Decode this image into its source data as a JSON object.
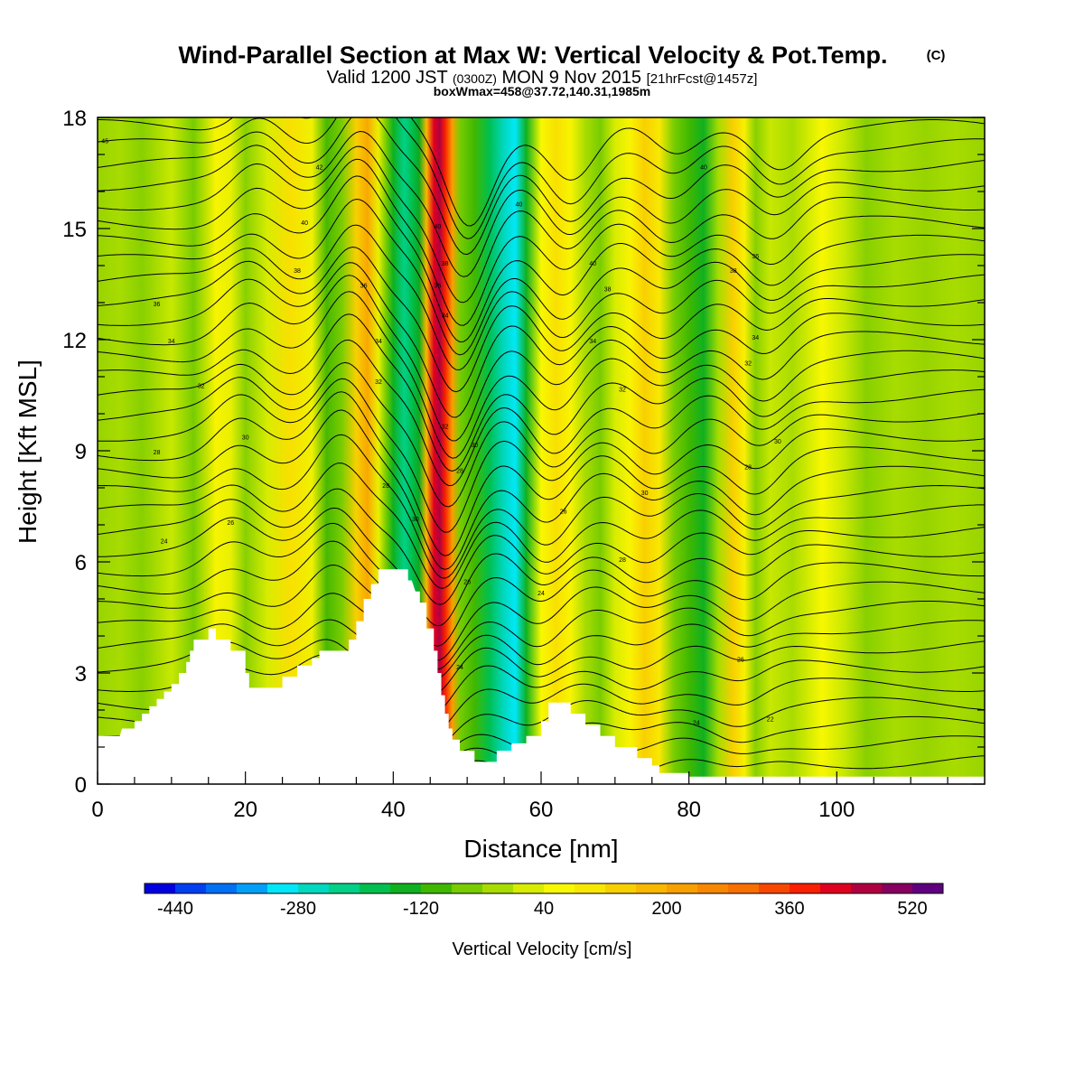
{
  "title": "Wind-Parallel Section at Max W: Vertical Velocity & Pot.Temp.",
  "copyright_mark": "(C)",
  "subtitle_valid": "Valid 1200 JST",
  "subtitle_z": "(0300Z)",
  "subtitle_date": "MON 9 Nov 2015",
  "subtitle_fcst": "[21hrFcst@1457z]",
  "subtitle_box": "boxWmax=458@37.72,140.31,1985m",
  "chart_data": {
    "type": "heatmap",
    "xlabel": "Distance [nm]",
    "ylabel": "Height [Kft MSL]",
    "xlim": [
      0,
      120
    ],
    "ylim": [
      0,
      18
    ],
    "x_ticks": [
      "0",
      "20",
      "40",
      "60",
      "80",
      "100"
    ],
    "y_ticks": [
      "0",
      "3",
      "6",
      "9",
      "12",
      "15",
      "18"
    ],
    "colorbar": {
      "label": "Vertical Velocity [cm/s]",
      "tick_labels": [
        "-440",
        "-280",
        "-120",
        "40",
        "200",
        "360",
        "520"
      ],
      "levels": [
        -480,
        -440,
        -400,
        -360,
        -320,
        -280,
        -240,
        -200,
        -160,
        -120,
        -80,
        -40,
        0,
        40,
        80,
        120,
        160,
        200,
        240,
        280,
        320,
        360,
        400,
        440,
        480,
        520,
        560
      ],
      "colors": [
        "#0000e0",
        "#0040f0",
        "#0070f4",
        "#00a0f8",
        "#00e8f8",
        "#00d8c0",
        "#00d088",
        "#00c050",
        "#10b020",
        "#40b800",
        "#78cc00",
        "#a8dc00",
        "#d8ec00",
        "#f8f800",
        "#f8e800",
        "#f8d000",
        "#f8b800",
        "#f8a000",
        "#f88800",
        "#f87000",
        "#f84800",
        "#f82000",
        "#e00020",
        "#b00040",
        "#880060",
        "#600080"
      ]
    },
    "terrain_profile": [
      [
        0,
        1.3
      ],
      [
        3,
        1.3
      ],
      [
        3.3,
        1.5
      ],
      [
        5,
        1.5
      ],
      [
        5,
        1.7
      ],
      [
        6,
        1.7
      ],
      [
        6,
        1.9
      ],
      [
        7,
        1.9
      ],
      [
        7,
        2.1
      ],
      [
        8,
        2.1
      ],
      [
        8,
        2.3
      ],
      [
        9,
        2.3
      ],
      [
        9,
        2.5
      ],
      [
        10,
        2.5
      ],
      [
        10,
        2.7
      ],
      [
        11,
        2.7
      ],
      [
        11,
        3.0
      ],
      [
        12,
        3.0
      ],
      [
        12,
        3.3
      ],
      [
        12.5,
        3.3
      ],
      [
        12.5,
        3.6
      ],
      [
        13,
        3.6
      ],
      [
        13,
        3.9
      ],
      [
        15,
        3.9
      ],
      [
        15,
        4.2
      ],
      [
        16,
        4.2
      ],
      [
        16,
        3.9
      ],
      [
        18,
        3.9
      ],
      [
        18,
        3.6
      ],
      [
        20,
        3.6
      ],
      [
        20,
        3.0
      ],
      [
        20.5,
        3.0
      ],
      [
        20.5,
        2.6
      ],
      [
        25,
        2.6
      ],
      [
        25,
        2.9
      ],
      [
        27,
        2.9
      ],
      [
        27,
        3.2
      ],
      [
        29,
        3.2
      ],
      [
        29,
        3.4
      ],
      [
        30,
        3.4
      ],
      [
        30,
        3.6
      ],
      [
        34,
        3.6
      ],
      [
        34,
        3.9
      ],
      [
        35,
        3.9
      ],
      [
        35,
        4.4
      ],
      [
        36,
        4.4
      ],
      [
        36,
        5.0
      ],
      [
        37,
        5.0
      ],
      [
        37,
        5.4
      ],
      [
        38,
        5.4
      ],
      [
        38,
        5.8
      ],
      [
        42,
        5.8
      ],
      [
        42,
        5.5
      ],
      [
        42.5,
        5.5
      ],
      [
        43,
        5.2
      ],
      [
        43.6,
        5.2
      ],
      [
        43.6,
        4.9
      ],
      [
        44.5,
        4.9
      ],
      [
        44.5,
        4.2
      ],
      [
        45.5,
        4.2
      ],
      [
        45.5,
        3.6
      ],
      [
        46,
        3.6
      ],
      [
        46,
        3.0
      ],
      [
        46.5,
        3.0
      ],
      [
        46.5,
        2.4
      ],
      [
        47,
        2.4
      ],
      [
        47,
        1.9
      ],
      [
        47.5,
        1.9
      ],
      [
        47.5,
        1.5
      ],
      [
        48,
        1.5
      ],
      [
        48,
        1.2
      ],
      [
        49,
        1.2
      ],
      [
        49,
        0.9
      ],
      [
        51,
        0.9
      ],
      [
        51,
        0.6
      ],
      [
        54,
        0.6
      ],
      [
        54,
        0.9
      ],
      [
        56,
        0.9
      ],
      [
        56,
        1.1
      ],
      [
        58,
        1.1
      ],
      [
        58,
        1.3
      ],
      [
        60,
        1.3
      ],
      [
        60,
        1.7
      ],
      [
        61,
        1.7
      ],
      [
        61,
        2.2
      ],
      [
        64,
        2.2
      ],
      [
        64,
        1.9
      ],
      [
        66,
        1.9
      ],
      [
        66,
        1.6
      ],
      [
        68,
        1.6
      ],
      [
        68,
        1.3
      ],
      [
        70,
        1.3
      ],
      [
        70,
        1.0
      ],
      [
        73,
        1.0
      ],
      [
        73,
        0.7
      ],
      [
        75,
        0.7
      ],
      [
        75,
        0.5
      ],
      [
        76,
        0.5
      ],
      [
        76,
        0.3
      ],
      [
        80,
        0.3
      ],
      [
        80,
        0.2
      ],
      [
        120,
        0.2
      ]
    ],
    "contour_labels": [
      {
        "text": "45",
        "x": 1,
        "y": 17.3
      },
      {
        "text": "42",
        "x": 30,
        "y": 16.6
      },
      {
        "text": "40",
        "x": 28,
        "y": 15.1
      },
      {
        "text": "38",
        "x": 27,
        "y": 13.8
      },
      {
        "text": "36",
        "x": 36,
        "y": 13.4
      },
      {
        "text": "36",
        "x": 8,
        "y": 12.9
      },
      {
        "text": "34",
        "x": 10,
        "y": 11.9
      },
      {
        "text": "32",
        "x": 14,
        "y": 10.7
      },
      {
        "text": "34",
        "x": 38,
        "y": 11.9
      },
      {
        "text": "32",
        "x": 38,
        "y": 10.8
      },
      {
        "text": "30",
        "x": 20,
        "y": 9.3
      },
      {
        "text": "28",
        "x": 8,
        "y": 8.9
      },
      {
        "text": "26",
        "x": 18,
        "y": 7.0
      },
      {
        "text": "24",
        "x": 9,
        "y": 6.5
      },
      {
        "text": "28",
        "x": 39,
        "y": 8.0
      },
      {
        "text": "30",
        "x": 43,
        "y": 7.1
      },
      {
        "text": "40",
        "x": 46,
        "y": 15.0
      },
      {
        "text": "38",
        "x": 47,
        "y": 14.0
      },
      {
        "text": "36",
        "x": 46,
        "y": 13.4
      },
      {
        "text": "34",
        "x": 47,
        "y": 12.6
      },
      {
        "text": "32",
        "x": 47,
        "y": 9.6
      },
      {
        "text": "30",
        "x": 51,
        "y": 9.1
      },
      {
        "text": "28",
        "x": 49,
        "y": 8.4
      },
      {
        "text": "26",
        "x": 50,
        "y": 5.4
      },
      {
        "text": "24",
        "x": 49,
        "y": 3.1
      },
      {
        "text": "40",
        "x": 57,
        "y": 15.6
      },
      {
        "text": "26",
        "x": 63,
        "y": 7.3
      },
      {
        "text": "24",
        "x": 60,
        "y": 5.1
      },
      {
        "text": "40",
        "x": 67,
        "y": 14.0
      },
      {
        "text": "38",
        "x": 69,
        "y": 13.3
      },
      {
        "text": "34",
        "x": 67,
        "y": 11.9
      },
      {
        "text": "32",
        "x": 71,
        "y": 10.6
      },
      {
        "text": "30",
        "x": 74,
        "y": 7.8
      },
      {
        "text": "28",
        "x": 71,
        "y": 6.0
      },
      {
        "text": "40",
        "x": 82,
        "y": 16.6
      },
      {
        "text": "38",
        "x": 86,
        "y": 13.8
      },
      {
        "text": "36",
        "x": 89,
        "y": 14.2
      },
      {
        "text": "34",
        "x": 89,
        "y": 12.0
      },
      {
        "text": "32",
        "x": 88,
        "y": 11.3
      },
      {
        "text": "30",
        "x": 92,
        "y": 9.2
      },
      {
        "text": "28",
        "x": 88,
        "y": 8.5
      },
      {
        "text": "26",
        "x": 87,
        "y": 3.3
      },
      {
        "text": "24",
        "x": 81,
        "y": 1.6
      },
      {
        "text": "22",
        "x": 91,
        "y": 1.7
      }
    ]
  }
}
